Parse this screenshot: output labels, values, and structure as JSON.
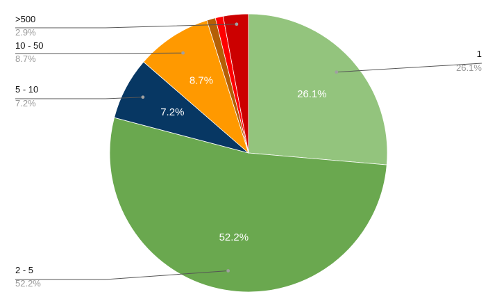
{
  "chart_data": {
    "type": "pie",
    "title": "",
    "slices": [
      {
        "label": "1",
        "value": 26.1,
        "percent_label": "26.1%",
        "color": "#93c47d",
        "show_in_slice": true,
        "legend_side": "right"
      },
      {
        "label": "2 - 5",
        "value": 52.2,
        "percent_label": "52.2%",
        "color": "#6aa84f",
        "show_in_slice": true,
        "legend_side": "left"
      },
      {
        "label": "5 - 10",
        "value": 7.2,
        "percent_label": "7.2%",
        "color": "#073763",
        "show_in_slice": true,
        "legend_side": "left"
      },
      {
        "label": "10 - 50",
        "value": 8.7,
        "percent_label": "8.7%",
        "color": "#ff9900",
        "show_in_slice": true,
        "legend_side": "left"
      },
      {
        "label": "",
        "value": 1.0,
        "percent_label": "",
        "color": "#b45f06",
        "show_in_slice": false,
        "legend_side": "none"
      },
      {
        "label": "",
        "value": 0.9,
        "percent_label": "",
        "color": "#ff0000",
        "show_in_slice": false,
        "legend_side": "none"
      },
      {
        "label": ">500",
        "value": 2.9,
        "percent_label": "2.9%",
        "color": "#cc0000",
        "show_in_slice": false,
        "legend_side": "left"
      }
    ],
    "start_angle_deg": 0,
    "direction": "clockwise"
  }
}
